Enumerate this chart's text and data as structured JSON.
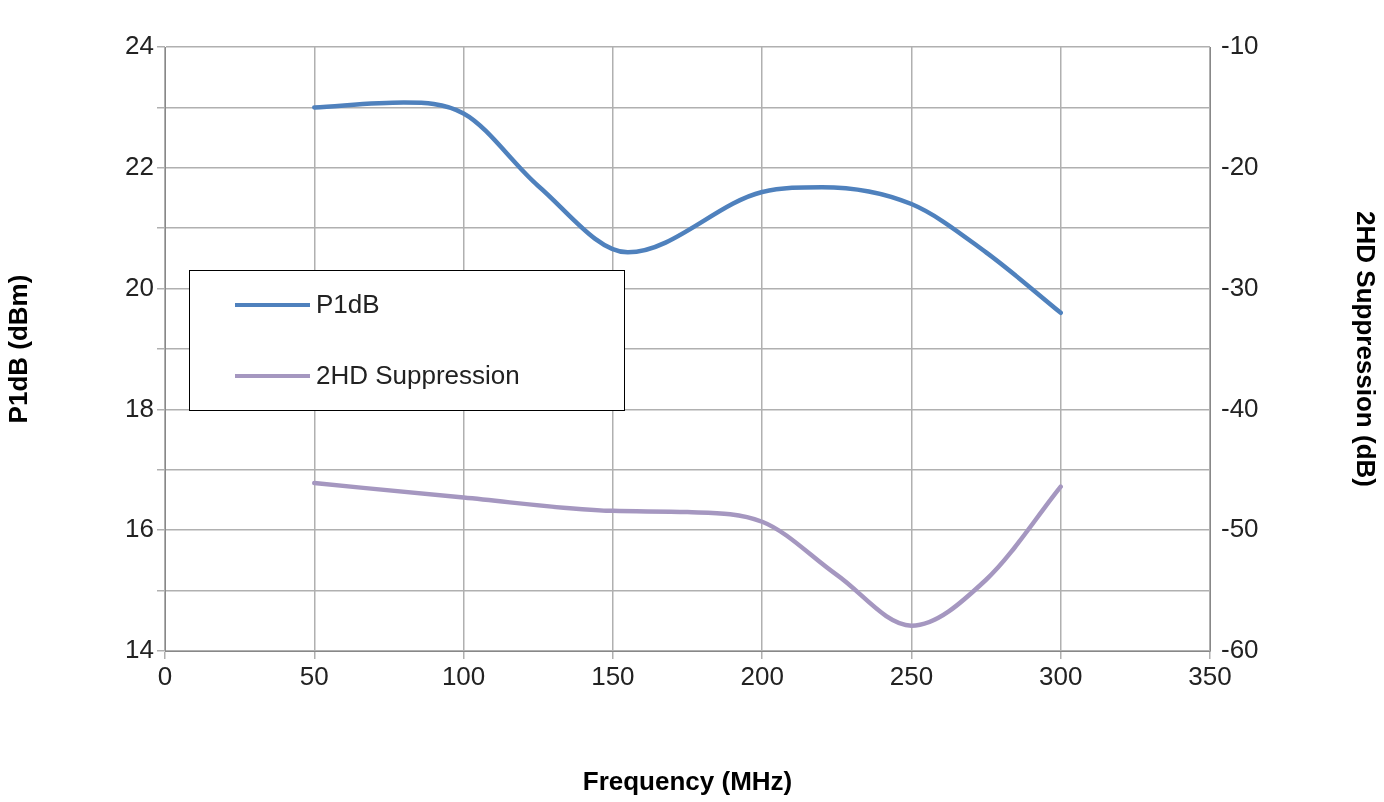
{
  "chart_data": {
    "type": "line",
    "xlabel": "Frequency (MHz)",
    "ylabel": "P1dB (dBm)",
    "y2label": "2HD Suppression (dB)",
    "xlim": [
      0,
      350
    ],
    "xticks": [
      0,
      50,
      100,
      150,
      200,
      250,
      300,
      350
    ],
    "ylim": [
      14,
      24
    ],
    "yticks": [
      14,
      {
        "value": 15,
        "label": null
      },
      16,
      {
        "value": 17,
        "label": null
      },
      18,
      {
        "value": 19,
        "label": null
      },
      20,
      {
        "value": 21,
        "label": null
      },
      22,
      {
        "value": 23,
        "label": null
      },
      24
    ],
    "y2lim": [
      -60,
      -10
    ],
    "y2ticks": [
      -60,
      -50,
      -40,
      -30,
      -20,
      -10
    ],
    "grid": true,
    "legend": "left",
    "marker": "none",
    "line_style": "solid",
    "series": [
      {
        "name": "P1dB",
        "color": "#4f81bd",
        "x": [
          50,
          80,
          100,
          125,
          155,
          200,
          220,
          250,
          275,
          300
        ],
        "values": [
          23.0,
          23.08,
          22.9,
          21.7,
          20.6,
          21.6,
          21.68,
          21.4,
          20.6,
          19.6
        ]
      },
      {
        "name": "2HD Suppression",
        "color": "#a597c0",
        "axis": "y2",
        "x": [
          50,
          100,
          150,
          175,
          200,
          225,
          250,
          275,
          300
        ],
        "values": [
          -46.1,
          -47.3,
          -48.4,
          -48.5,
          -49.3,
          -53.7,
          -57.9,
          -54.1,
          -46.4
        ]
      }
    ]
  }
}
